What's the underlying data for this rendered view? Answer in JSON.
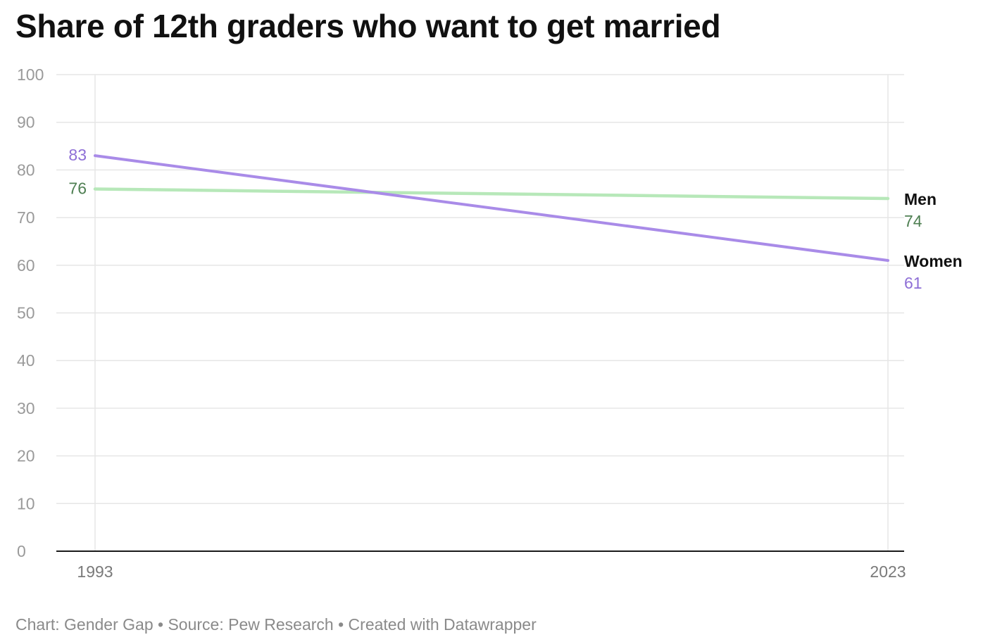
{
  "title": "Share of 12th graders who want to get married",
  "footer": {
    "chart_label": "Chart:",
    "chart_name": "Gender Gap",
    "separator": "•",
    "source_label": "Source:",
    "source_name": "Pew Research",
    "credit": "Created with Datawrapper"
  },
  "colors": {
    "women": "#a98be8",
    "women_text": "#8e6fd6",
    "men": "#b7e8b9",
    "men_text": "#4e7f52",
    "grid": "#e6e6e6",
    "axis": "#1a1a1a",
    "tick_text": "#9a9a9a",
    "series_label": "#111111"
  },
  "chart_data": {
    "type": "line",
    "x": [
      1993,
      2023
    ],
    "x_tick_labels": [
      "1993",
      "2023"
    ],
    "y_ticks": [
      0,
      10,
      20,
      30,
      40,
      50,
      60,
      70,
      80,
      90,
      100
    ],
    "ylim": [
      0,
      100
    ],
    "grid": true,
    "series": [
      {
        "key": "women",
        "name": "Women",
        "values": [
          83,
          61
        ],
        "start_label": "83",
        "end_label": "61"
      },
      {
        "key": "men",
        "name": "Men",
        "values": [
          76,
          74
        ],
        "start_label": "76",
        "end_label": "74"
      }
    ]
  }
}
